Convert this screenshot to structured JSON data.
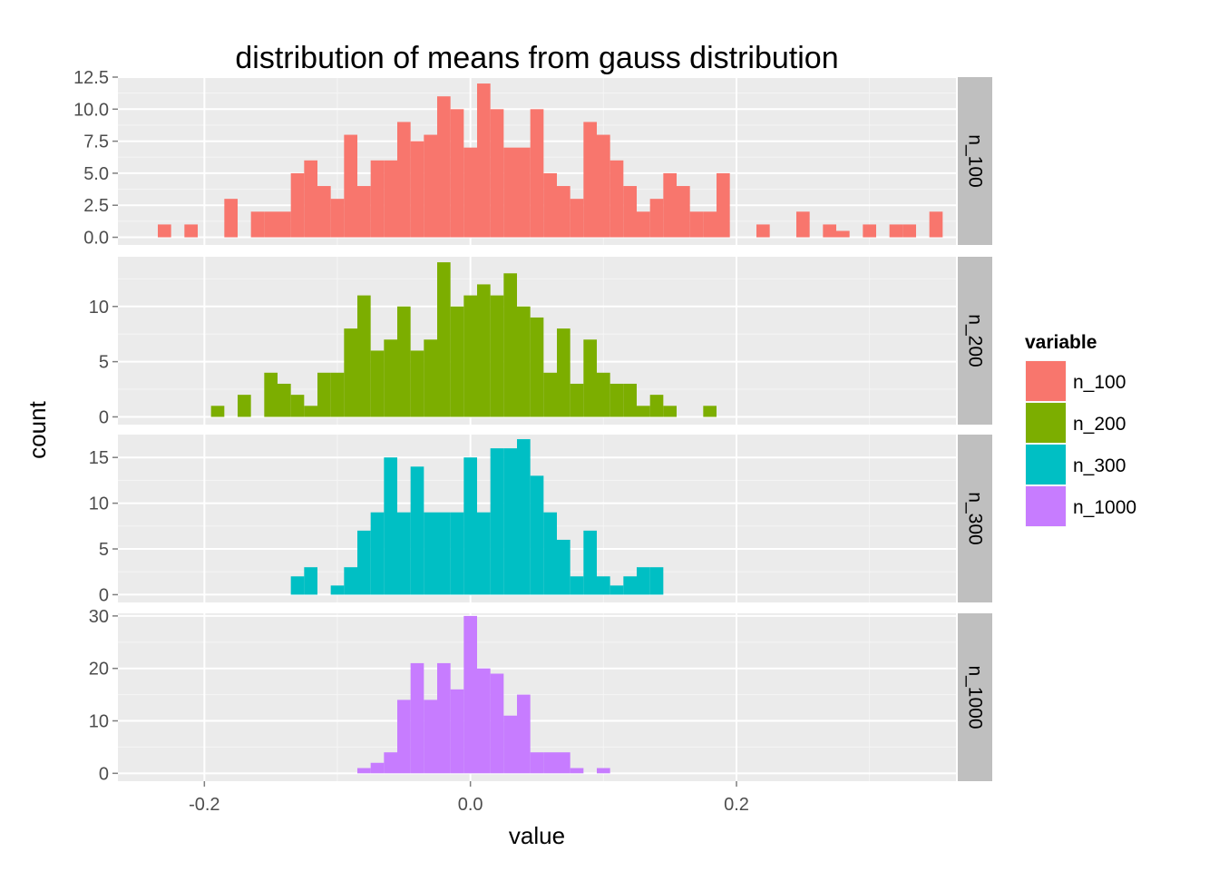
{
  "chart_data": {
    "type": "bar",
    "title": "distribution of means from gauss distribution",
    "xlabel": "value",
    "ylabel": "count",
    "xlim": [
      -0.265,
      0.365
    ],
    "binwidth": 0.01,
    "x_ticks": [
      -0.2,
      0.0,
      0.2
    ],
    "x_tick_labels": [
      "-0.2",
      "0.0",
      "0.2"
    ],
    "grid": true,
    "legend": {
      "title": "variable",
      "placement": "right",
      "entries": [
        {
          "label": "n_100",
          "color": "#F8766D"
        },
        {
          "label": "n_200",
          "color": "#7CAE00"
        },
        {
          "label": "n_300",
          "color": "#00BFC4"
        },
        {
          "label": "n_1000",
          "color": "#C77CFF"
        }
      ]
    },
    "panels": [
      {
        "strip": "n_100",
        "color": "#F8766D",
        "ylim": [
          -0.6,
          12.5
        ],
        "y_ticks": [
          0,
          2.5,
          5,
          7.5,
          10,
          12.5
        ],
        "y_tick_labels": [
          "0.0",
          "2.5",
          "5.0",
          "7.5",
          "10.0",
          "12.5"
        ],
        "bins": [
          [
            -0.23,
            1
          ],
          [
            -0.21,
            1
          ],
          [
            -0.18,
            3
          ],
          [
            -0.16,
            2
          ],
          [
            -0.15,
            2
          ],
          [
            -0.14,
            2
          ],
          [
            -0.13,
            5
          ],
          [
            -0.12,
            6
          ],
          [
            -0.11,
            4
          ],
          [
            -0.1,
            3
          ],
          [
            -0.09,
            8
          ],
          [
            -0.08,
            4
          ],
          [
            -0.07,
            6
          ],
          [
            -0.06,
            6
          ],
          [
            -0.05,
            9
          ],
          [
            -0.04,
            7.5
          ],
          [
            -0.03,
            8
          ],
          [
            -0.02,
            11
          ],
          [
            -0.01,
            10
          ],
          [
            0,
            7
          ],
          [
            0.01,
            12
          ],
          [
            0.02,
            10
          ],
          [
            0.03,
            7
          ],
          [
            0.04,
            7
          ],
          [
            0.05,
            10
          ],
          [
            0.06,
            5
          ],
          [
            0.07,
            4
          ],
          [
            0.08,
            3
          ],
          [
            0.09,
            9
          ],
          [
            0.1,
            8
          ],
          [
            0.11,
            6
          ],
          [
            0.12,
            4
          ],
          [
            0.13,
            2
          ],
          [
            0.14,
            3
          ],
          [
            0.15,
            5
          ],
          [
            0.16,
            4
          ],
          [
            0.17,
            2
          ],
          [
            0.18,
            2
          ],
          [
            0.19,
            5
          ],
          [
            0.22,
            1
          ],
          [
            0.25,
            2
          ],
          [
            0.27,
            1
          ],
          [
            0.28,
            0.5
          ],
          [
            0.3,
            1
          ],
          [
            0.32,
            1
          ],
          [
            0.33,
            1
          ],
          [
            0.35,
            2
          ]
        ]
      },
      {
        "strip": "n_200",
        "color": "#7CAE00",
        "ylim": [
          -0.7,
          14.5
        ],
        "y_ticks": [
          0,
          5,
          10
        ],
        "y_tick_labels": [
          "0",
          "5",
          "10"
        ],
        "bins": [
          [
            -0.19,
            1
          ],
          [
            -0.17,
            2
          ],
          [
            -0.15,
            4
          ],
          [
            -0.14,
            3
          ],
          [
            -0.13,
            2
          ],
          [
            -0.12,
            1
          ],
          [
            -0.11,
            4
          ],
          [
            -0.1,
            4
          ],
          [
            -0.09,
            8
          ],
          [
            -0.08,
            11
          ],
          [
            -0.07,
            6
          ],
          [
            -0.06,
            7
          ],
          [
            -0.05,
            10
          ],
          [
            -0.04,
            6
          ],
          [
            -0.03,
            7
          ],
          [
            -0.02,
            14
          ],
          [
            -0.01,
            10
          ],
          [
            0,
            11
          ],
          [
            0.01,
            12
          ],
          [
            0.02,
            11
          ],
          [
            0.03,
            13
          ],
          [
            0.04,
            10
          ],
          [
            0.05,
            9
          ],
          [
            0.06,
            4
          ],
          [
            0.07,
            8
          ],
          [
            0.08,
            3
          ],
          [
            0.09,
            7
          ],
          [
            0.1,
            4
          ],
          [
            0.11,
            3
          ],
          [
            0.12,
            3
          ],
          [
            0.13,
            1
          ],
          [
            0.14,
            2
          ],
          [
            0.15,
            1
          ],
          [
            0.18,
            1
          ]
        ]
      },
      {
        "strip": "n_300",
        "color": "#00BFC4",
        "ylim": [
          -0.85,
          17.5
        ],
        "y_ticks": [
          0,
          5,
          10,
          15
        ],
        "y_tick_labels": [
          "0",
          "5",
          "10",
          "15"
        ],
        "bins": [
          [
            -0.13,
            2
          ],
          [
            -0.12,
            3
          ],
          [
            -0.1,
            1
          ],
          [
            -0.09,
            3
          ],
          [
            -0.08,
            7
          ],
          [
            -0.07,
            9
          ],
          [
            -0.06,
            15
          ],
          [
            -0.05,
            9
          ],
          [
            -0.04,
            14
          ],
          [
            -0.03,
            9
          ],
          [
            -0.02,
            9
          ],
          [
            -0.01,
            9
          ],
          [
            0,
            15
          ],
          [
            0.01,
            9
          ],
          [
            0.02,
            16
          ],
          [
            0.03,
            16
          ],
          [
            0.04,
            17
          ],
          [
            0.05,
            13
          ],
          [
            0.06,
            9
          ],
          [
            0.07,
            6
          ],
          [
            0.08,
            2
          ],
          [
            0.09,
            7
          ],
          [
            0.1,
            2
          ],
          [
            0.11,
            1
          ],
          [
            0.12,
            2
          ],
          [
            0.13,
            3
          ],
          [
            0.14,
            3
          ]
        ]
      },
      {
        "strip": "n_1000",
        "color": "#C77CFF",
        "ylim": [
          -1.5,
          30.5
        ],
        "y_ticks": [
          0,
          10,
          20,
          30
        ],
        "y_tick_labels": [
          "0",
          "10",
          "20",
          "30"
        ],
        "bins": [
          [
            -0.08,
            1
          ],
          [
            -0.07,
            2
          ],
          [
            -0.06,
            4
          ],
          [
            -0.05,
            14
          ],
          [
            -0.04,
            21
          ],
          [
            -0.03,
            14
          ],
          [
            -0.02,
            21
          ],
          [
            -0.01,
            16
          ],
          [
            0,
            30
          ],
          [
            0.01,
            20
          ],
          [
            0.02,
            19
          ],
          [
            0.03,
            11
          ],
          [
            0.04,
            15
          ],
          [
            0.05,
            4
          ],
          [
            0.06,
            4
          ],
          [
            0.07,
            4
          ],
          [
            0.08,
            1
          ],
          [
            0.1,
            1
          ]
        ]
      }
    ]
  }
}
